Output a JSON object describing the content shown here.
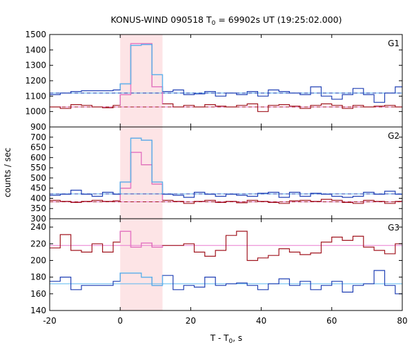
{
  "chart_data": {
    "type": "line",
    "title": "KONUS-WIND 090518 T",
    "title_sub": "0",
    "title_rest": " = 69902s UT (19:25:02.000)",
    "xlabel": "T - T",
    "xlabel_sub": "0",
    "xlabel_rest": ", s",
    "ylabel": "counts / sec",
    "xlim": [
      -20,
      80
    ],
    "x_ticks": [
      -20,
      0,
      20,
      40,
      60,
      80
    ],
    "x_tick_labels": [
      "-20",
      "0",
      "20",
      "40",
      "60",
      "80"
    ],
    "shaded_interval": [
      0,
      12
    ],
    "colors": {
      "dark_red": "#a0141e",
      "pink": "#e879d0",
      "blue": "#1f3fb4",
      "light_blue": "#5cb8f0",
      "shade": "#fde4e6"
    },
    "panels": [
      {
        "name": "G1",
        "ylim": [
          900,
          1500
        ],
        "y_ticks": [
          900,
          1000,
          1100,
          1200,
          1300,
          1400,
          1500
        ],
        "y_tick_labels": [
          "900",
          "1000",
          "1100",
          "1200",
          "1300",
          "1400",
          "1500"
        ],
        "edges": [
          -20,
          -17,
          -14,
          -11,
          -8,
          -5,
          -2,
          0,
          3,
          6,
          9,
          12,
          15,
          18,
          21,
          24,
          27,
          30,
          33,
          36,
          39,
          42,
          45,
          48,
          51,
          54,
          57,
          60,
          63,
          66,
          69,
          72,
          75,
          78,
          80
        ],
        "red_values": [
          1030,
          1020,
          1045,
          1040,
          1030,
          1025,
          1040,
          1110,
          1440,
          1440,
          1160,
          1050,
          1030,
          1040,
          1030,
          1045,
          1035,
          1030,
          1040,
          1050,
          1000,
          1040,
          1045,
          1035,
          1020,
          1040,
          1050,
          1040,
          1020,
          1040,
          1030,
          1035,
          1040,
          1030
        ],
        "red_bg": 1030,
        "blue_values": [
          1110,
          1120,
          1130,
          1135,
          1135,
          1135,
          1140,
          1180,
          1430,
          1435,
          1240,
          1130,
          1140,
          1110,
          1115,
          1130,
          1100,
          1120,
          1110,
          1130,
          1100,
          1140,
          1130,
          1120,
          1110,
          1160,
          1100,
          1080,
          1110,
          1150,
          1110,
          1060,
          1120,
          1160
        ],
        "blue_bg": 1120
      },
      {
        "name": "G2",
        "ylim": [
          300,
          750
        ],
        "y_ticks": [
          300,
          350,
          400,
          450,
          500,
          550,
          600,
          650,
          700
        ],
        "y_tick_labels": [
          "300",
          "350",
          "400",
          "450",
          "500",
          "550",
          "600",
          "650",
          "700"
        ],
        "edges": [
          -20,
          -17,
          -14,
          -11,
          -8,
          -5,
          -2,
          0,
          3,
          6,
          9,
          12,
          15,
          18,
          21,
          24,
          27,
          30,
          33,
          36,
          39,
          42,
          45,
          48,
          51,
          54,
          57,
          60,
          63,
          66,
          69,
          72,
          75,
          78,
          80
        ],
        "red_values": [
          390,
          385,
          380,
          385,
          390,
          385,
          388,
          450,
          625,
          565,
          470,
          390,
          385,
          375,
          385,
          390,
          380,
          385,
          378,
          390,
          385,
          380,
          375,
          388,
          390,
          385,
          395,
          390,
          380,
          375,
          390,
          385,
          375,
          385
        ],
        "red_bg": 383,
        "blue_values": [
          415,
          420,
          440,
          420,
          410,
          430,
          420,
          480,
          695,
          685,
          480,
          420,
          415,
          405,
          430,
          420,
          410,
          420,
          415,
          410,
          425,
          430,
          405,
          430,
          410,
          425,
          420,
          410,
          405,
          410,
          430,
          420,
          435,
          420
        ],
        "blue_bg": 422
      },
      {
        "name": "G3",
        "ylim": [
          140,
          250
        ],
        "y_ticks": [
          140,
          160,
          180,
          200,
          220,
          240
        ],
        "y_tick_labels": [
          "140",
          "160",
          "180",
          "200",
          "220",
          "240"
        ],
        "edges": [
          -20,
          -17,
          -14,
          -11,
          -8,
          -5,
          -2,
          0,
          3,
          6,
          9,
          12,
          15,
          18,
          21,
          24,
          27,
          30,
          33,
          36,
          39,
          42,
          45,
          48,
          51,
          54,
          57,
          60,
          63,
          66,
          69,
          72,
          75,
          78,
          80
        ],
        "red_values": [
          215,
          231,
          212,
          210,
          220,
          210,
          222,
          235,
          216,
          221,
          216,
          218,
          218,
          220,
          210,
          205,
          212,
          230,
          235,
          200,
          203,
          206,
          214,
          210,
          207,
          209,
          222,
          228,
          224,
          229,
          216,
          212,
          208,
          220
        ],
        "red_bg": 218,
        "blue_values": [
          175,
          180,
          165,
          170,
          170,
          170,
          175,
          185,
          185,
          180,
          170,
          182,
          165,
          170,
          168,
          180,
          170,
          172,
          173,
          170,
          165,
          172,
          178,
          170,
          175,
          165,
          170,
          175,
          162,
          170,
          172,
          188,
          170,
          160
        ],
        "blue_bg": 172
      }
    ]
  }
}
